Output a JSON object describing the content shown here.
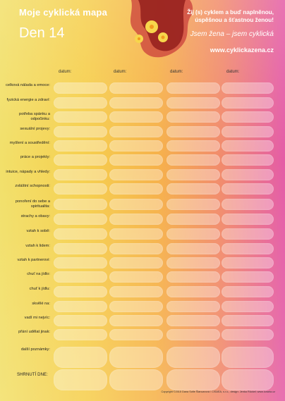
{
  "header": {
    "title": "Moje cyklická mapa",
    "day": "Den 14",
    "motto": "Žij (s) cyklem a buď naplněnou, úspěšnou a šťastnou ženou!",
    "slogan": "Jsem žena – jsem cyklická",
    "website": "www.cyklickazena.cz"
  },
  "table": {
    "column_label": "datum:",
    "rows": [
      "celková nálada a emoce:",
      "fyzická energie a zdraví:",
      "potřeba spánku a odpočinku:",
      "sexuální projevy:",
      "myšlení a soustředění:",
      "práce a projekty:",
      "intuice, nápady a vhledy:",
      "zvláštní schopnosti:",
      "ponoření do sebe a spiritualita:",
      "strachy a obavy:",
      "vztah k sobě:",
      "vztah k lidem:",
      "vztah k partnerovi:",
      "chuť na jídlo:",
      "chuť k jídlu:",
      "skvělé na:",
      "vadí mi nejvíc:",
      "přání udělat jinak:",
      "další poznámky:"
    ],
    "summary_label": "SHRNUTÍ DNE:"
  },
  "footer": {
    "copyright": "Copyright ©2015 Dana Sofie Šlancarová / CISAEA, s.r.o., design: Jenka Rückel; www.lunaria.cz"
  },
  "colors": {
    "gradient_left": "#f2e06a",
    "gradient_mid": "#f6b24a",
    "gradient_right": "#e45ca7",
    "text_light": "#ffffff"
  }
}
